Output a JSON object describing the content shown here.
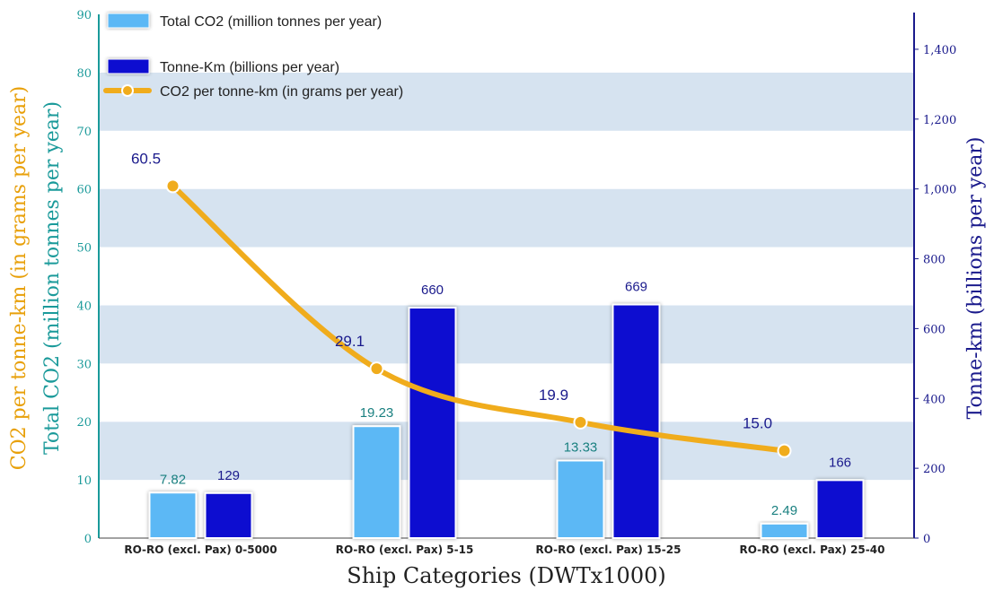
{
  "chart_data": {
    "type": "bar",
    "categories": [
      "RO-RO (excl. Pax)  0-5000",
      "RO-RO (excl. Pax)  5-15",
      "RO-RO (excl. Pax)  15-25",
      "RO-RO (excl. Pax)  25-40"
    ],
    "series": [
      {
        "name": "Total CO2 (million tonnes per year)",
        "type": "bar",
        "axis": "left",
        "color": "#5bb8f5",
        "values": [
          7.82,
          19.23,
          13.33,
          2.49
        ],
        "labels": [
          "7.82",
          "19.23",
          "13.33",
          "2.49"
        ]
      },
      {
        "name": "Tonne-Km (billions per year)",
        "type": "bar",
        "axis": "right",
        "color": "#0a0ad0",
        "values": [
          129,
          660,
          669,
          166
        ],
        "labels": [
          "129",
          "660",
          "669",
          "166"
        ]
      },
      {
        "name": "CO2 per tonne-km (in grams per year)",
        "type": "line",
        "axis": "left",
        "color": "#f0ac1c",
        "values": [
          60.5,
          29.1,
          19.9,
          15.0
        ],
        "labels": [
          "60.5",
          "29.1",
          "19.9",
          "15.0"
        ]
      }
    ],
    "xlabel": "Ship Categories  (DWTx1000)",
    "ylabel_left": [
      "CO2 per tonne-km (in grams per year)",
      "Total CO2 (million tonnes per year)"
    ],
    "ylabel_right": "Tonne-km (billions per year)",
    "ylim_left": [
      0,
      90
    ],
    "ylim_right": [
      0,
      1500
    ],
    "yticks_left": [
      "0",
      "10",
      "20",
      "30",
      "40",
      "50",
      "60",
      "70",
      "80",
      "90"
    ],
    "yticks_right": [
      "0",
      "200",
      "400",
      "600",
      "800",
      "1,000",
      "1,200",
      "1,400"
    ],
    "yticks_right_values": [
      0,
      200,
      400,
      600,
      800,
      1000,
      1200,
      1400
    ],
    "legend_position": "top-left",
    "grid": "alternating horizontal bands"
  }
}
